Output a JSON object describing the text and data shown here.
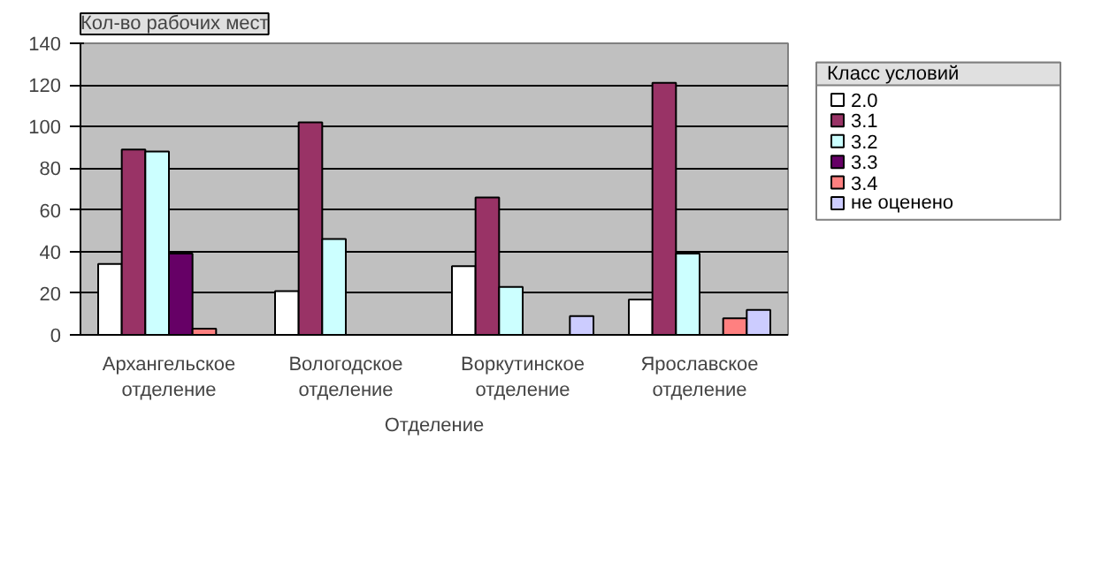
{
  "chart_data": {
    "type": "bar",
    "categories": [
      "Архангельское\nотделение",
      "Вологодское\nотделение",
      "Воркутинское\nотделение",
      "Ярославское\nотделение"
    ],
    "xlabel": "Отделение",
    "ylabel": "Кол-во рабочих мест",
    "legend_title": "Класс условий",
    "ylim": [
      0,
      140
    ],
    "yticks": [
      0,
      20,
      40,
      60,
      80,
      100,
      120,
      140
    ],
    "grid": "y",
    "legend": "right",
    "series": [
      {
        "name": "2.0",
        "color": "#ffffff",
        "values": [
          34,
          21,
          33,
          17
        ]
      },
      {
        "name": "3.1",
        "color": "#993366",
        "values": [
          89,
          102,
          66,
          121
        ]
      },
      {
        "name": "3.2",
        "color": "#ccffff",
        "values": [
          88,
          46,
          23,
          39
        ]
      },
      {
        "name": "3.3",
        "color": "#660066",
        "values": [
          39,
          null,
          null,
          null
        ]
      },
      {
        "name": "3.4",
        "color": "#ff8080",
        "values": [
          3,
          null,
          null,
          8
        ]
      },
      {
        "name": "не оценено",
        "color": "#ccccff",
        "values": [
          null,
          null,
          9,
          12
        ]
      }
    ]
  }
}
